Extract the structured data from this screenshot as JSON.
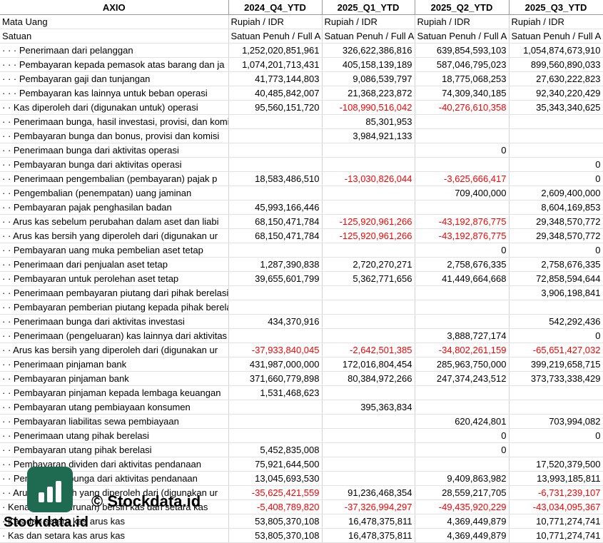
{
  "header": {
    "first": "AXIO",
    "periods": [
      "2024_Q4_YTD",
      "2025_Q1_YTD",
      "2025_Q2_YTD",
      "2025_Q3_YTD"
    ]
  },
  "rows": [
    {
      "label": "Mata Uang",
      "values": [
        "Rupiah / IDR",
        "Rupiah / IDR",
        "Rupiah / IDR",
        "Rupiah / IDR"
      ],
      "text": true
    },
    {
      "label": "Satuan",
      "values": [
        "Satuan Penuh / Full A",
        "Satuan Penuh / Full A",
        "Satuan Penuh / Full A",
        "Satuan Penuh / Full A"
      ],
      "text": true
    },
    {
      "label": "· · · Penerimaan dari pelanggan",
      "values": [
        "1,252,020,851,961",
        "326,622,386,816",
        "639,854,593,103",
        "1,054,874,673,910"
      ]
    },
    {
      "label": "· · · Pembayaran kepada pemasok atas barang dan ja",
      "values": [
        "1,074,201,713,431",
        "405,158,139,189",
        "587,046,795,023",
        "899,560,890,033"
      ]
    },
    {
      "label": "· · · Pembayaran gaji dan tunjangan",
      "values": [
        "41,773,144,803",
        "9,086,539,797",
        "18,775,068,253",
        "27,630,222,823"
      ]
    },
    {
      "label": "· · · Pembayaran kas lainnya untuk beban operasi",
      "values": [
        "40,485,842,007",
        "21,368,223,872",
        "74,309,340,185",
        "92,340,220,429"
      ]
    },
    {
      "label": "· · Kas diperoleh dari (digunakan untuk) operasi",
      "values": [
        "95,560,151,720",
        "-108,990,516,042",
        "-40,276,610,358",
        "35,343,340,625"
      ]
    },
    {
      "label": "· · Penerimaan bunga, hasil investasi, provisi, dan komisi",
      "values": [
        "",
        "85,301,953",
        "",
        ""
      ]
    },
    {
      "label": "· · Pembayaran bunga dan bonus, provisi dan komisi",
      "values": [
        "",
        "3,984,921,133",
        "",
        ""
      ]
    },
    {
      "label": "· · Penerimaan bunga dari aktivitas operasi",
      "values": [
        "",
        "",
        "0",
        ""
      ]
    },
    {
      "label": "· · Pembayaran bunga dari aktivitas operasi",
      "values": [
        "",
        "",
        "",
        "0"
      ]
    },
    {
      "label": "· · Penerimaan pengembalian (pembayaran) pajak p",
      "values": [
        "18,583,486,510",
        "-13,030,826,044",
        "-3,625,666,417",
        "0"
      ]
    },
    {
      "label": "· · Pengembalian (penempatan) uang jaminan",
      "values": [
        "",
        "",
        "709,400,000",
        "2,609,400,000"
      ]
    },
    {
      "label": "· · Pembayaran pajak penghasilan badan",
      "values": [
        "45,993,166,446",
        "",
        "",
        "8,604,169,853"
      ]
    },
    {
      "label": "· · Arus kas sebelum perubahan dalam aset dan liabi",
      "values": [
        "68,150,471,784",
        "-125,920,961,266",
        "-43,192,876,775",
        "29,348,570,772"
      ]
    },
    {
      "label": "· · Arus kas bersih yang diperoleh dari (digunakan ur",
      "values": [
        "68,150,471,784",
        "-125,920,961,266",
        "-43,192,876,775",
        "29,348,570,772"
      ]
    },
    {
      "label": "· · Pembayaran uang muka pembelian aset tetap",
      "values": [
        "",
        "",
        "0",
        "0"
      ]
    },
    {
      "label": "· · Penerimaan dari penjualan aset tetap",
      "values": [
        "1,287,390,838",
        "2,720,270,271",
        "2,758,676,335",
        "2,758,676,335"
      ]
    },
    {
      "label": "· · Pembayaran untuk perolehan aset tetap",
      "values": [
        "39,655,601,799",
        "5,362,771,656",
        "41,449,664,668",
        "72,858,594,644"
      ]
    },
    {
      "label": "· · Penerimaan pembayaran piutang dari pihak berelasi",
      "values": [
        "",
        "",
        "",
        "3,906,198,841"
      ]
    },
    {
      "label": "· · Pembayaran pemberian piutang kepada pihak berelasi",
      "values": [
        "",
        "",
        "",
        ""
      ]
    },
    {
      "label": "· · Penerimaan bunga dari aktivitas investasi",
      "values": [
        "434,370,916",
        "",
        "",
        "542,292,436"
      ]
    },
    {
      "label": "· · Penerimaan (pengeluaran) kas lainnya dari aktivitas investasi",
      "values": [
        "",
        "",
        "3,888,727,174",
        "0"
      ]
    },
    {
      "label": "· · Arus kas bersih yang diperoleh dari (digunakan ur",
      "values": [
        "-37,933,840,045",
        "-2,642,501,385",
        "-34,802,261,159",
        "-65,651,427,032"
      ]
    },
    {
      "label": "· · Penerimaan pinjaman bank",
      "values": [
        "431,987,000,000",
        "172,016,804,454",
        "285,963,750,000",
        "399,219,658,715"
      ]
    },
    {
      "label": "· · Pembayaran pinjaman bank",
      "values": [
        "371,660,779,898",
        "80,384,972,266",
        "247,374,243,512",
        "373,733,338,429"
      ]
    },
    {
      "label": "· · Pembayaran pinjaman kepada lembaga keuangan",
      "values": [
        "1,531,468,623",
        "",
        "",
        ""
      ]
    },
    {
      "label": "· · Pembayaran utang pembiayaan konsumen",
      "values": [
        "",
        "395,363,834",
        "",
        ""
      ]
    },
    {
      "label": "· · Pembayaran liabilitas sewa pembiayaan",
      "values": [
        "",
        "",
        "620,424,801",
        "703,994,082"
      ]
    },
    {
      "label": "· · Penerimaan utang pihak berelasi",
      "values": [
        "",
        "",
        "0",
        "0"
      ]
    },
    {
      "label": "· · Pembayaran utang pihak berelasi",
      "values": [
        "5,452,835,008",
        "",
        "0",
        ""
      ]
    },
    {
      "label": "· · Pembayaran dividen dari aktivitas pendanaan",
      "values": [
        "75,921,644,500",
        "",
        "",
        "17,520,379,500"
      ]
    },
    {
      "label": "· · Pembayaran bunga dari aktivitas pendanaan",
      "values": [
        "13,045,693,530",
        "",
        "9,409,863,982",
        "13,993,185,811"
      ]
    },
    {
      "label": "· · Arus kas bersih yang diperoleh dari (digunakan ur",
      "values": [
        "-35,625,421,559",
        "91,236,468,354",
        "28,559,217,705",
        "-6,731,239,107"
      ]
    },
    {
      "label": "· Kenaikan (penurunan) bersih kas dan setara kas",
      "values": [
        "-5,408,789,820",
        "-37,326,994,297",
        "-49,435,920,229",
        "-43,034,095,367"
      ]
    },
    {
      "label": "· Kas dan setara kas arus kas",
      "values": [
        "53,805,370,108",
        "16,478,375,811",
        "4,369,449,879",
        "10,771,274,741"
      ]
    },
    {
      "label": "· Kas dan setara kas arus kas",
      "values": [
        "53,805,370,108",
        "16,478,375,811",
        "4,369,449,879",
        "10,771,274,741"
      ]
    }
  ],
  "watermark": {
    "center_text": "© Stockdata.id",
    "brand_text": "Stockdata.id",
    "logo_color": "#1e6b52"
  },
  "colors": {
    "negative": "#ff0000"
  }
}
